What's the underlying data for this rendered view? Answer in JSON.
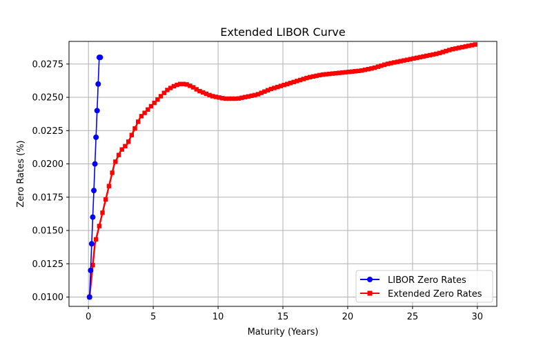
{
  "chart_data": {
    "type": "line",
    "title": "Extended LIBOR Curve",
    "xlabel": "Maturity (Years)",
    "ylabel": "Zero Rates (%)",
    "xlim": [
      -1.5,
      31.5
    ],
    "ylim": [
      0.0093,
      0.0292
    ],
    "xticks": [
      0,
      5,
      10,
      15,
      20,
      25,
      30
    ],
    "xtick_labels": [
      "0",
      "5",
      "10",
      "15",
      "20",
      "25",
      "30"
    ],
    "yticks": [
      0.01,
      0.0125,
      0.015,
      0.0175,
      0.02,
      0.0225,
      0.025,
      0.0275
    ],
    "ytick_labels": [
      "0.0100",
      "0.0125",
      "0.0150",
      "0.0175",
      "0.0200",
      "0.0225",
      "0.0250",
      "0.0275"
    ],
    "grid": true,
    "legend_position": "lower-right",
    "series": [
      {
        "name": "LIBOR Zero Rates",
        "color": "#0000ff",
        "marker": "circle",
        "x": [
          0.083,
          0.167,
          0.25,
          0.333,
          0.417,
          0.5,
          0.583,
          0.667,
          0.75,
          0.833,
          0.917
        ],
        "y": [
          0.01,
          0.012,
          0.014,
          0.016,
          0.018,
          0.02,
          0.022,
          0.024,
          0.026,
          0.028,
          0.028
        ]
      },
      {
        "name": "Extended Zero Rates",
        "color": "#ff0000",
        "marker": "square",
        "x": [
          0.083,
          0.5,
          1,
          1.5,
          2,
          2.5,
          3,
          3.5,
          4,
          4.5,
          5,
          5.5,
          6,
          6.5,
          7,
          7.5,
          8,
          8.5,
          9,
          9.5,
          10,
          10.5,
          11,
          11.5,
          12,
          13,
          14,
          15,
          16,
          17,
          18,
          19,
          20,
          21,
          22,
          23,
          24,
          25,
          26,
          27,
          28,
          29,
          30
        ],
        "y": [
          0.01,
          0.014,
          0.016,
          0.018,
          0.02,
          0.021,
          0.0215,
          0.0225,
          0.0235,
          0.024,
          0.0245,
          0.025,
          0.0255,
          0.0258,
          0.026,
          0.026,
          0.0258,
          0.0255,
          0.0253,
          0.0251,
          0.025,
          0.0249,
          0.0249,
          0.0249,
          0.025,
          0.0252,
          0.0256,
          0.0259,
          0.0262,
          0.0265,
          0.0267,
          0.0268,
          0.0269,
          0.027,
          0.0272,
          0.0275,
          0.0277,
          0.0279,
          0.0281,
          0.0283,
          0.0286,
          0.0288,
          0.029
        ]
      }
    ]
  }
}
